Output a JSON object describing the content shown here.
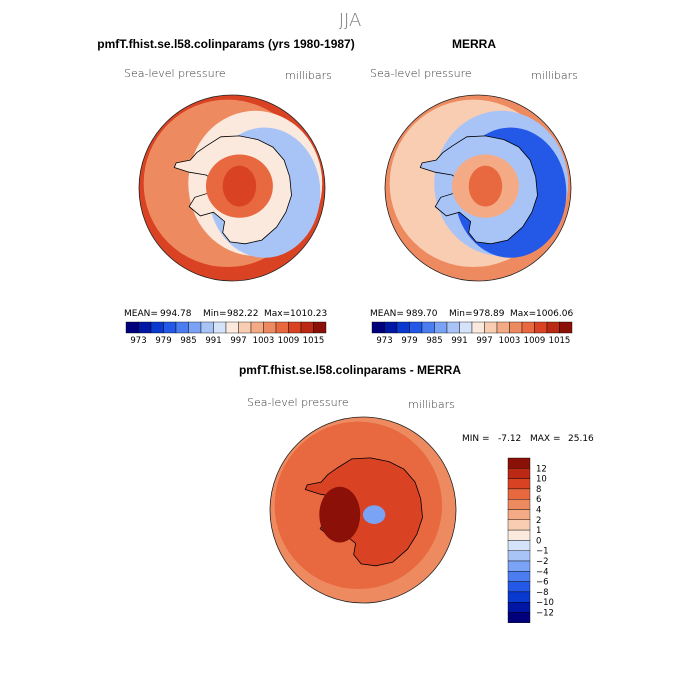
{
  "chart_data": {
    "type": "heatmap",
    "title": "JJA",
    "panels": [
      {
        "id": "model",
        "title": "pmfT.fhist.se.l58.colinparams (yrs 1980-1987)",
        "variable": "Sea-level pressure",
        "units": "millibars",
        "projection": "south-polar-stereographic",
        "stats": {
          "mean_label": "MEAN=",
          "mean": "994.78",
          "min_label": "Min=",
          "min": "982.22",
          "max_label": "Max=",
          "max": "1010.23"
        },
        "field": {
          "ocean": 1003,
          "ocean_outer": 1009,
          "low_ring": 988,
          "antarctica_edge": 994,
          "antarctica_interior": 1006,
          "plateau_max": 1010.23
        }
      },
      {
        "id": "obs",
        "title": "MERRA",
        "variable": "Sea-level pressure",
        "units": "millibars",
        "projection": "south-polar-stereographic",
        "stats": {
          "mean_label": "MEAN=",
          "mean": "989.70",
          "min_label": "Min=",
          "min": "978.89",
          "max_label": "Max=",
          "max": "1006.06"
        },
        "field": {
          "ocean": 997,
          "ocean_outer": 1005,
          "low_ring": 980,
          "antarctica_edge": 990,
          "antarctica_interior": 1002,
          "plateau_max": 1006.06
        }
      },
      {
        "id": "diff",
        "title": "pmfT.fhist.se.l58.colinparams - MERRA",
        "variable": "Sea-level pressure",
        "units": "millibars",
        "projection": "south-polar-stereographic",
        "stats": {
          "min_label": "MIN =",
          "min": "-7.12",
          "max_label": "MAX =",
          "max": "25.16"
        },
        "field": {
          "ocean": 6,
          "ocean_outer": 4,
          "antarctica_interior": 9,
          "local_low": -4,
          "local_max": 25.16
        }
      }
    ],
    "colorbar_main": {
      "orientation": "horizontal",
      "levels": [
        970,
        973,
        976,
        979,
        982,
        985,
        988,
        991,
        994,
        997,
        1000,
        1003,
        1006,
        1009,
        1012,
        1015,
        1018
      ],
      "tick_labels": [
        "973",
        "979",
        "985",
        "991",
        "997",
        "1003",
        "1009",
        "1015"
      ],
      "colors": [
        "#00007a",
        "#0017a6",
        "#0a39d0",
        "#2459e8",
        "#4b7df0",
        "#7ba3f5",
        "#a8c4f7",
        "#d4e3f9",
        "#fbe9dd",
        "#f8cdb1",
        "#f4ab85",
        "#ee8a60",
        "#e8683f",
        "#d94323",
        "#bb2813",
        "#8a1008"
      ]
    },
    "colorbar_diff": {
      "orientation": "vertical",
      "levels": [
        -13,
        -12,
        -10,
        -8,
        -6,
        -4,
        -2,
        -1,
        0,
        1,
        2,
        4,
        6,
        8,
        10,
        12,
        14
      ],
      "tick_labels": [
        "12",
        "10",
        "8",
        "6",
        "4",
        "2",
        "1",
        "0",
        "−1",
        "−2",
        "−4",
        "−6",
        "−8",
        "−10",
        "−12"
      ],
      "colors": [
        "#00007a",
        "#0017a6",
        "#0a39d0",
        "#2459e8",
        "#4b7df0",
        "#7ba3f5",
        "#a8c4f7",
        "#d4e3f9",
        "#fbe9dd",
        "#f8cdb1",
        "#f4ab85",
        "#ee8a60",
        "#e8683f",
        "#d94323",
        "#bb2813",
        "#8a1008"
      ]
    }
  }
}
